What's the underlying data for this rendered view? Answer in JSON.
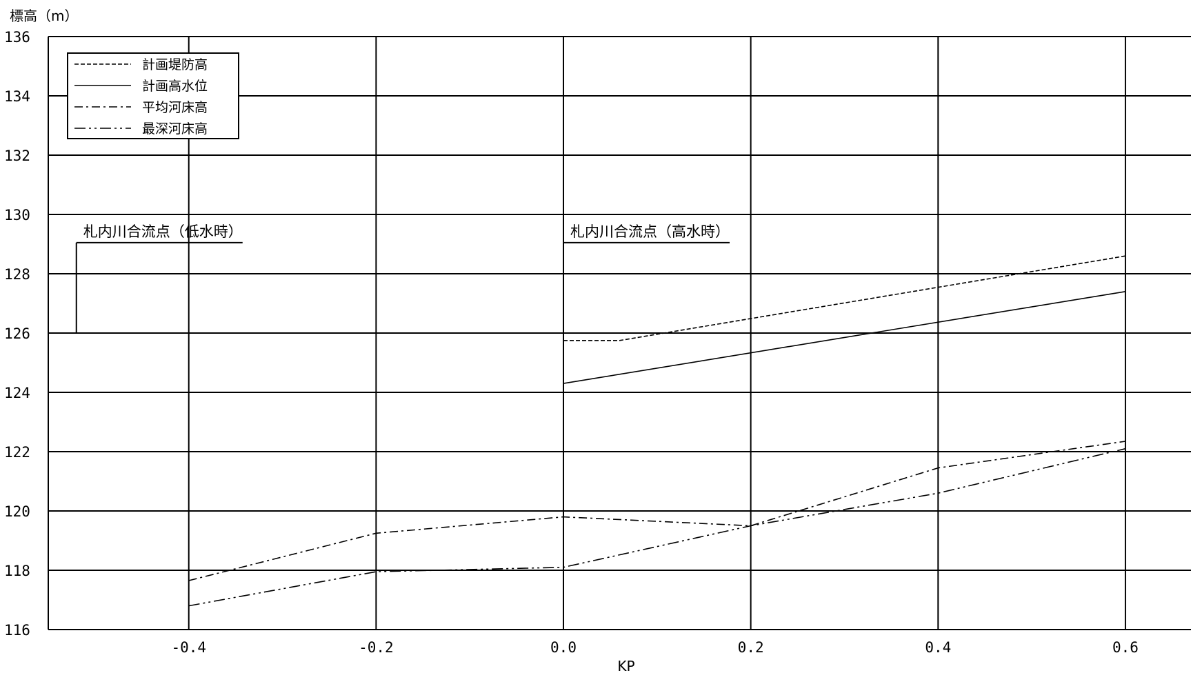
{
  "chart_data": {
    "type": "line",
    "ylabel": "標高（m）",
    "xlabel": "KP",
    "xlim": [
      -0.55,
      0.67
    ],
    "ylim": [
      116,
      136
    ],
    "x_ticks": [
      -0.4,
      -0.2,
      0.0,
      0.2,
      0.4,
      0.6
    ],
    "x_tick_labels": [
      "-0.4",
      "-0.2",
      "0.0",
      "0.2",
      "0.4",
      "0.6"
    ],
    "y_ticks": [
      116,
      118,
      120,
      122,
      124,
      126,
      128,
      130,
      132,
      134,
      136
    ],
    "y_tick_labels": [
      "116",
      "118",
      "120",
      "122",
      "124",
      "126",
      "128",
      "130",
      "132",
      "134",
      "136"
    ],
    "grid": true,
    "legend_position": "top-left",
    "series": [
      {
        "name": "計画堤防高",
        "dash": "dashed",
        "x": [
          0.0,
          0.06,
          0.6
        ],
        "y": [
          125.75,
          125.75,
          128.6
        ]
      },
      {
        "name": "計画高水位",
        "dash": "solid",
        "x": [
          0.0,
          0.6
        ],
        "y": [
          124.3,
          127.4
        ]
      },
      {
        "name": "平均河床高",
        "dash": "dashdot",
        "x": [
          -0.4,
          -0.2,
          0.0,
          0.2,
          0.4,
          0.6
        ],
        "y": [
          117.65,
          119.25,
          119.8,
          119.5,
          121.45,
          122.35
        ]
      },
      {
        "name": "最深河床高",
        "dash": "dashdotdot",
        "x": [
          -0.4,
          -0.2,
          0.0,
          0.2,
          0.4,
          0.6
        ],
        "y": [
          116.8,
          117.95,
          118.1,
          119.5,
          120.6,
          122.1
        ]
      }
    ],
    "annotations": [
      {
        "text": "札内川合流点（低水時）",
        "x": -0.52,
        "y_top": 129.05,
        "y_bottom": 126.0
      },
      {
        "text": "札内川合流点（高水時）",
        "x": 0.0,
        "y_top": 129.05,
        "y_bottom": 126.0
      }
    ]
  }
}
